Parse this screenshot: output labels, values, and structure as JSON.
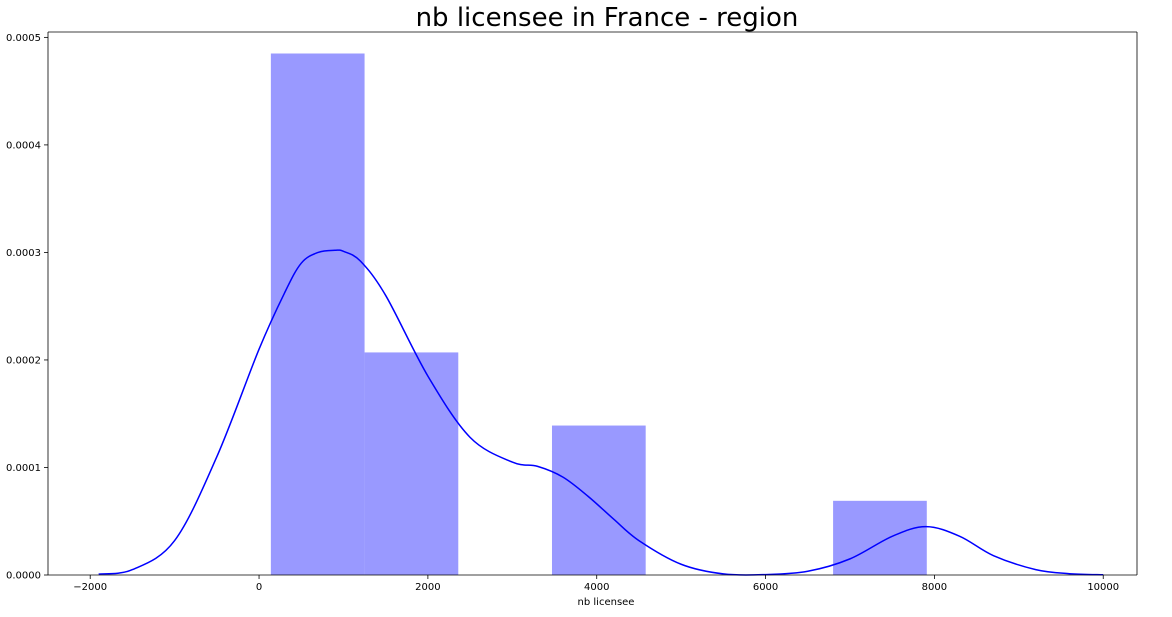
{
  "chart_data": {
    "type": "bar",
    "title": "nb licensee in France - region",
    "xlabel": "nb licensee",
    "ylabel": "",
    "xlim": [
      -2500,
      10400
    ],
    "ylim": [
      0,
      0.000505
    ],
    "grid": false,
    "x_ticks": [
      -2000,
      0,
      2000,
      4000,
      6000,
      8000,
      10000
    ],
    "x_tick_labels": [
      "−2000",
      "0",
      "2000",
      "4000",
      "6000",
      "8000",
      "10000"
    ],
    "y_ticks": [
      0,
      0.0001,
      0.0002,
      0.0003,
      0.0004,
      0.0005
    ],
    "y_tick_labels": [
      "0.0000",
      "0.0001",
      "0.0002",
      "0.0003",
      "0.0004",
      "0.0005"
    ],
    "histogram": {
      "color": "#9999ff",
      "bins": [
        {
          "x0": 140,
          "x1": 1250,
          "density": 0.000485
        },
        {
          "x0": 1250,
          "x1": 2360,
          "density": 0.000207
        },
        {
          "x0": 2360,
          "x1": 3470,
          "density": 0
        },
        {
          "x0": 3470,
          "x1": 4580,
          "density": 0.000139
        },
        {
          "x0": 4580,
          "x1": 5690,
          "density": 0
        },
        {
          "x0": 5690,
          "x1": 6800,
          "density": 0
        },
        {
          "x0": 6800,
          "x1": 7910,
          "density": 6.9e-05
        }
      ]
    },
    "kde": {
      "color": "#0000ff",
      "x": [
        -1900,
        -1500,
        -1000,
        -500,
        0,
        300,
        500,
        700,
        900,
        1000,
        1200,
        1500,
        2000,
        2500,
        3000,
        3300,
        3600,
        3900,
        4200,
        4500,
        5000,
        5500,
        6000,
        6500,
        7000,
        7500,
        7900,
        8300,
        8700,
        9200,
        9600,
        10000
      ],
      "y": [
        8e-07,
        5e-06,
        3.2e-05,
        0.00011,
        0.00021,
        0.000262,
        0.00029,
        0.0003,
        0.000302,
        0.000301,
        0.000292,
        0.00026,
        0.000185,
        0.000128,
        0.000105,
        0.000101,
        9.1e-05,
        7.3e-05,
        5.2e-05,
        3.2e-05,
        1e-05,
        1e-06,
        4e-07,
        3.5e-06,
        1.5e-05,
        3.6e-05,
        4.5e-05,
        3.6e-05,
        1.8e-05,
        5e-06,
        1.2e-06,
        2e-07
      ]
    }
  }
}
